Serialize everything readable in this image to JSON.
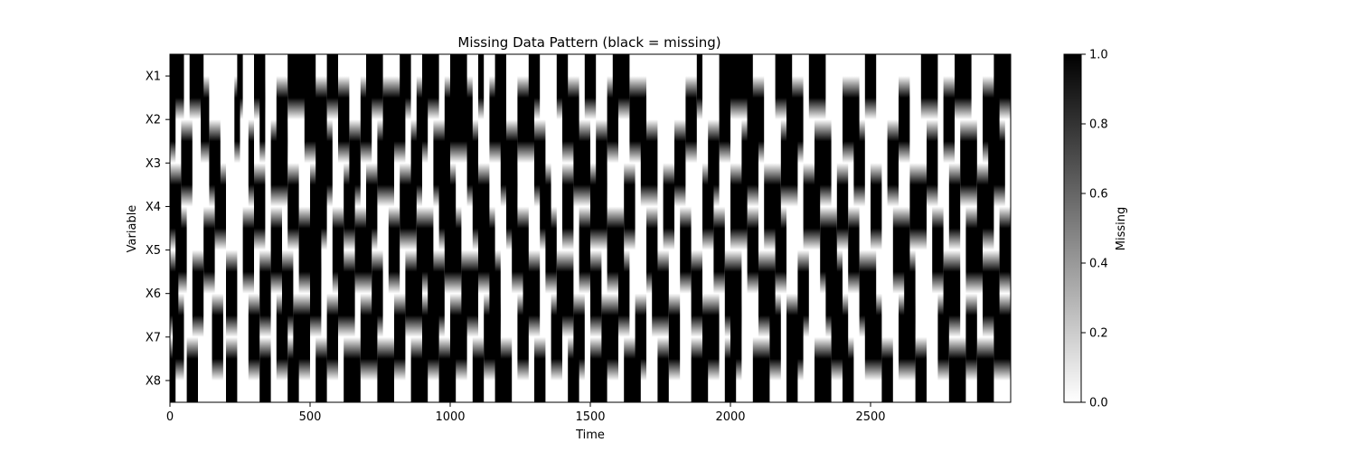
{
  "chart_data": {
    "type": "heatmap",
    "title": "Missing Data Pattern (black = missing)",
    "xlabel": "Time",
    "ylabel": "Variable",
    "colorbar_label": "Missing",
    "colormap": "gray_r",
    "colors": {
      "missing": "#000000",
      "present": "#ffffff"
    },
    "variables": [
      "X1",
      "X2",
      "X3",
      "X4",
      "X5",
      "X6",
      "X7",
      "X8"
    ],
    "x_ticks": [
      0,
      500,
      1000,
      1500,
      2000,
      2500
    ],
    "x_tick_labels": [
      "0",
      "500",
      "1000",
      "1500",
      "2000",
      "2500"
    ],
    "xlim": [
      0,
      3000
    ],
    "colorbar_ticks": [
      0.0,
      0.2,
      0.4,
      0.6,
      0.8,
      1.0
    ],
    "colorbar_tick_labels": [
      "0.0",
      "0.2",
      "0.4",
      "0.6",
      "0.8",
      "1.0"
    ],
    "value_range": [
      0,
      1
    ],
    "interpolation": "smooth vertical blending between variable rows",
    "missing_segments": [
      [
        [
          0,
          50
        ],
        [
          70,
          120
        ],
        [
          240,
          260
        ],
        [
          300,
          340
        ],
        [
          420,
          520
        ],
        [
          560,
          600
        ],
        [
          700,
          760
        ],
        [
          820,
          860
        ],
        [
          900,
          960
        ],
        [
          1000,
          1060
        ],
        [
          1100,
          1120
        ],
        [
          1160,
          1200
        ],
        [
          1280,
          1320
        ],
        [
          1380,
          1420
        ],
        [
          1480,
          1520
        ],
        [
          1580,
          1640
        ],
        [
          1880,
          1900
        ],
        [
          1960,
          2080
        ],
        [
          2160,
          2220
        ],
        [
          2280,
          2340
        ],
        [
          2480,
          2520
        ],
        [
          2680,
          2740
        ],
        [
          2800,
          2860
        ],
        [
          2940,
          3000
        ]
      ],
      [
        [
          0,
          20
        ],
        [
          110,
          140
        ],
        [
          230,
          250
        ],
        [
          320,
          340
        ],
        [
          380,
          420
        ],
        [
          480,
          560
        ],
        [
          600,
          640
        ],
        [
          680,
          720
        ],
        [
          760,
          840
        ],
        [
          880,
          920
        ],
        [
          980,
          1080
        ],
        [
          1140,
          1200
        ],
        [
          1240,
          1300
        ],
        [
          1400,
          1460
        ],
        [
          1560,
          1600
        ],
        [
          1640,
          1700
        ],
        [
          1840,
          1880
        ],
        [
          1960,
          2000
        ],
        [
          2060,
          2120
        ],
        [
          2200,
          2260
        ],
        [
          2400,
          2460
        ],
        [
          2600,
          2640
        ],
        [
          2760,
          2800
        ],
        [
          2900,
          2960
        ]
      ],
      [
        [
          40,
          80
        ],
        [
          140,
          180
        ],
        [
          280,
          300
        ],
        [
          360,
          420
        ],
        [
          520,
          580
        ],
        [
          640,
          680
        ],
        [
          740,
          800
        ],
        [
          860,
          900
        ],
        [
          940,
          1000
        ],
        [
          1060,
          1100
        ],
        [
          1180,
          1240
        ],
        [
          1300,
          1340
        ],
        [
          1440,
          1500
        ],
        [
          1520,
          1560
        ],
        [
          1680,
          1740
        ],
        [
          1800,
          1840
        ],
        [
          1920,
          1960
        ],
        [
          2040,
          2100
        ],
        [
          2180,
          2240
        ],
        [
          2300,
          2360
        ],
        [
          2440,
          2480
        ],
        [
          2560,
          2600
        ],
        [
          2700,
          2740
        ],
        [
          2820,
          2880
        ],
        [
          2920,
          2980
        ]
      ],
      [
        [
          0,
          40
        ],
        [
          160,
          200
        ],
        [
          300,
          340
        ],
        [
          420,
          460
        ],
        [
          500,
          560
        ],
        [
          620,
          660
        ],
        [
          700,
          740
        ],
        [
          820,
          880
        ],
        [
          960,
          1020
        ],
        [
          1080,
          1140
        ],
        [
          1200,
          1240
        ],
        [
          1320,
          1360
        ],
        [
          1400,
          1440
        ],
        [
          1500,
          1560
        ],
        [
          1620,
          1660
        ],
        [
          1760,
          1800
        ],
        [
          1900,
          1940
        ],
        [
          2000,
          2060
        ],
        [
          2120,
          2180
        ],
        [
          2260,
          2320
        ],
        [
          2380,
          2420
        ],
        [
          2500,
          2540
        ],
        [
          2640,
          2700
        ],
        [
          2780,
          2820
        ],
        [
          2880,
          2940
        ]
      ],
      [
        [
          20,
          60
        ],
        [
          120,
          160
        ],
        [
          260,
          300
        ],
        [
          360,
          400
        ],
        [
          460,
          540
        ],
        [
          580,
          620
        ],
        [
          660,
          720
        ],
        [
          780,
          820
        ],
        [
          880,
          940
        ],
        [
          980,
          1040
        ],
        [
          1100,
          1160
        ],
        [
          1220,
          1280
        ],
        [
          1340,
          1380
        ],
        [
          1460,
          1500
        ],
        [
          1560,
          1620
        ],
        [
          1700,
          1740
        ],
        [
          1820,
          1860
        ],
        [
          1940,
          1980
        ],
        [
          2060,
          2100
        ],
        [
          2160,
          2200
        ],
        [
          2320,
          2380
        ],
        [
          2420,
          2460
        ],
        [
          2580,
          2640
        ],
        [
          2720,
          2760
        ],
        [
          2840,
          2900
        ],
        [
          2960,
          3000
        ]
      ],
      [
        [
          0,
          30
        ],
        [
          80,
          120
        ],
        [
          200,
          240
        ],
        [
          320,
          360
        ],
        [
          400,
          440
        ],
        [
          500,
          540
        ],
        [
          600,
          660
        ],
        [
          720,
          760
        ],
        [
          840,
          900
        ],
        [
          920,
          980
        ],
        [
          1040,
          1100
        ],
        [
          1140,
          1180
        ],
        [
          1260,
          1320
        ],
        [
          1380,
          1440
        ],
        [
          1500,
          1540
        ],
        [
          1600,
          1640
        ],
        [
          1720,
          1780
        ],
        [
          1860,
          1900
        ],
        [
          1980,
          2040
        ],
        [
          2100,
          2160
        ],
        [
          2240,
          2280
        ],
        [
          2340,
          2400
        ],
        [
          2460,
          2520
        ],
        [
          2620,
          2660
        ],
        [
          2760,
          2820
        ],
        [
          2900,
          2960
        ]
      ],
      [
        [
          10,
          50
        ],
        [
          150,
          190
        ],
        [
          280,
          320
        ],
        [
          380,
          420
        ],
        [
          440,
          500
        ],
        [
          560,
          600
        ],
        [
          680,
          740
        ],
        [
          800,
          840
        ],
        [
          900,
          960
        ],
        [
          1000,
          1060
        ],
        [
          1120,
          1180
        ],
        [
          1240,
          1280
        ],
        [
          1360,
          1400
        ],
        [
          1440,
          1480
        ],
        [
          1540,
          1600
        ],
        [
          1660,
          1700
        ],
        [
          1780,
          1820
        ],
        [
          1900,
          1960
        ],
        [
          2000,
          2040
        ],
        [
          2140,
          2180
        ],
        [
          2200,
          2260
        ],
        [
          2360,
          2420
        ],
        [
          2480,
          2540
        ],
        [
          2600,
          2660
        ],
        [
          2740,
          2780
        ],
        [
          2840,
          2880
        ],
        [
          2940,
          3000
        ]
      ],
      [
        [
          0,
          20
        ],
        [
          60,
          100
        ],
        [
          200,
          240
        ],
        [
          320,
          360
        ],
        [
          420,
          460
        ],
        [
          520,
          560
        ],
        [
          620,
          680
        ],
        [
          740,
          800
        ],
        [
          860,
          920
        ],
        [
          960,
          1020
        ],
        [
          1080,
          1120
        ],
        [
          1160,
          1220
        ],
        [
          1300,
          1340
        ],
        [
          1420,
          1460
        ],
        [
          1500,
          1560
        ],
        [
          1620,
          1680
        ],
        [
          1740,
          1780
        ],
        [
          1860,
          1920
        ],
        [
          1980,
          2020
        ],
        [
          2080,
          2140
        ],
        [
          2200,
          2240
        ],
        [
          2300,
          2360
        ],
        [
          2400,
          2440
        ],
        [
          2540,
          2580
        ],
        [
          2660,
          2700
        ],
        [
          2780,
          2840
        ],
        [
          2880,
          2940
        ]
      ]
    ]
  }
}
